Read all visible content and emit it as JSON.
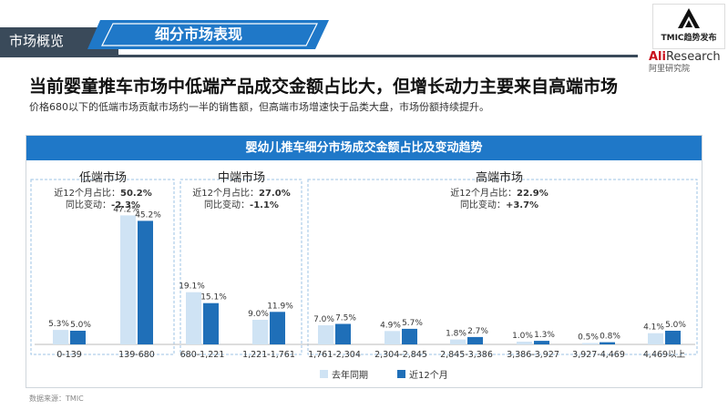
{
  "header": {
    "section_tab": "市场概览",
    "section_title": "细分市场表现",
    "logo1_text": "TMIC趋势发布",
    "logo2_brand": "Ali",
    "logo2_brand_rest": "Research",
    "logo2_sub": "阿里研究院"
  },
  "headline": "当前婴童推车市场中低端产品成交金额占比大，但增长动力主要来自高端市场",
  "subline": "价格680以下的低端市场贡献市场约一半的销售额，但高端市场增速快于品类大盘，市场份额持续提升。",
  "source": "数据来源：TMIC",
  "colors": {
    "prior": "#cfe3f4",
    "recent": "#1f6fb8",
    "header": "#1f78c8",
    "dark": "#3a4a5a"
  },
  "chart_data": {
    "type": "bar",
    "title": "婴幼儿推车细分市场成交金额占比及变动趋势",
    "series": [
      {
        "name": "去年同期",
        "values": [
          5.3,
          47.2,
          19.1,
          9.0,
          7.0,
          4.9,
          1.8,
          1.0,
          0.5,
          4.1
        ]
      },
      {
        "name": "近12个月",
        "values": [
          5.0,
          45.2,
          15.1,
          11.9,
          7.5,
          5.7,
          2.7,
          1.3,
          0.8,
          5.0
        ]
      }
    ],
    "categories": [
      "0-139",
      "139-680",
      "680-1,221",
      "1,221-1,761",
      "1,761-2,304",
      "2,304-2,845",
      "2,845-3,386",
      "3,386-3,927",
      "3,927-4,469",
      "4,469以上"
    ],
    "value_labels": {
      "prior": [
        "5.3%",
        "47.2%",
        "19.1%",
        "9.0%",
        "7.0%",
        "4.9%",
        "1.8%",
        "1.0%",
        "0.5%",
        "4.1%"
      ],
      "recent": [
        "5.0%",
        "45.2%",
        "15.1%",
        "11.9%",
        "7.5%",
        "5.7%",
        "2.7%",
        "1.3%",
        "0.8%",
        "5.0%"
      ]
    },
    "segments": [
      {
        "name": "低端市场",
        "share_label": "近12个月占比：",
        "share": "50.2%",
        "change_label": "同比变动：",
        "change": "-2.3%"
      },
      {
        "name": "中端市场",
        "share_label": "近12个月占比：",
        "share": "27.0%",
        "change_label": "同比变动：",
        "change": "-1.1%"
      },
      {
        "name": "高端市场",
        "share_label": "近12个月占比：",
        "share": "22.9%",
        "change_label": "同比变动：",
        "change": "+3.7%"
      }
    ],
    "ylim": [
      0,
      50
    ],
    "legend": "bottom-center",
    "grid": false
  }
}
